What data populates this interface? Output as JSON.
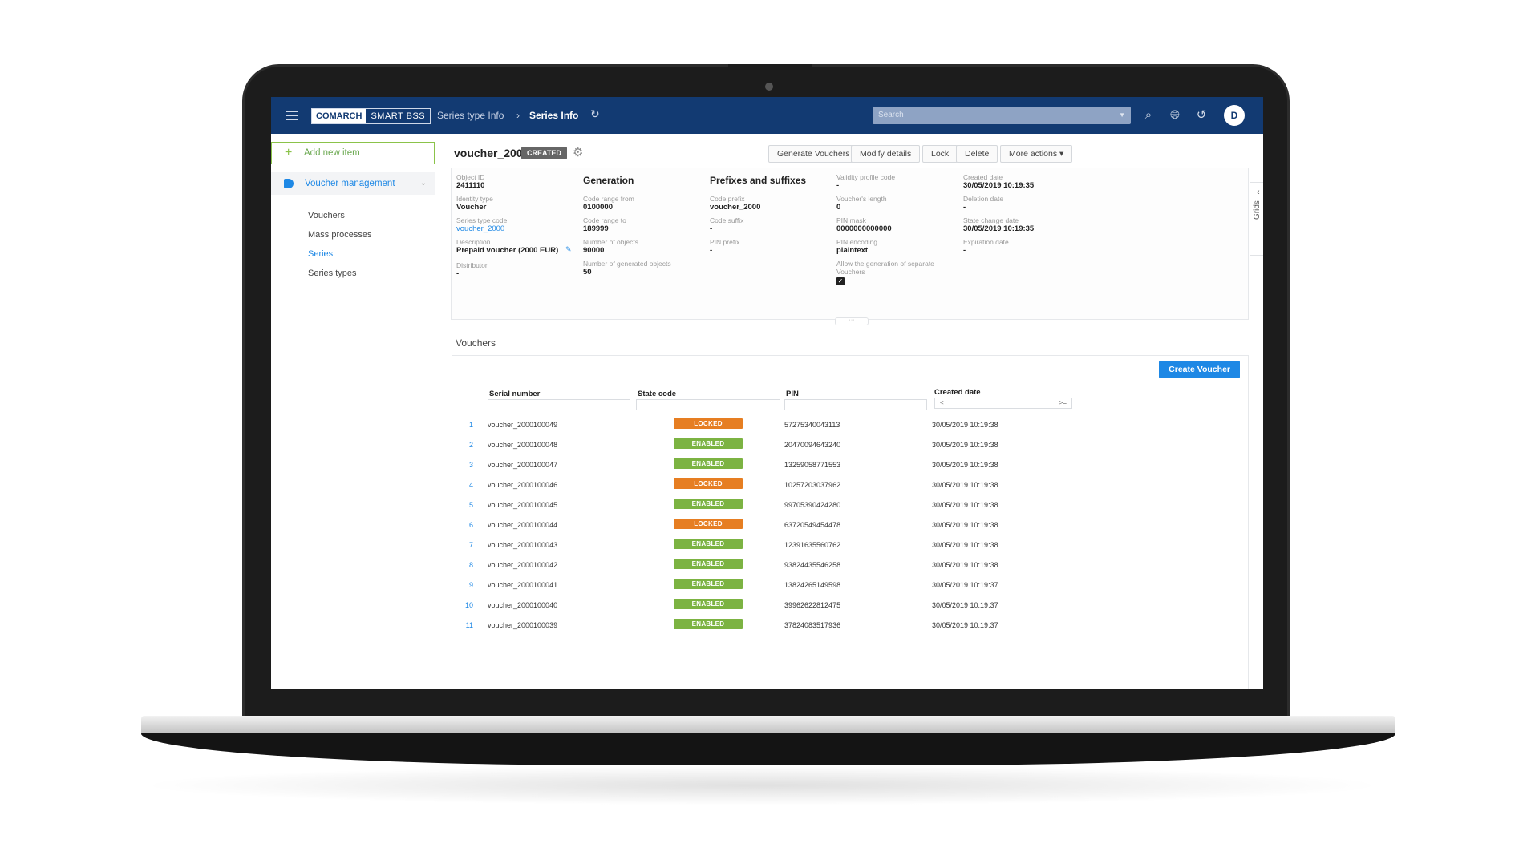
{
  "colors": {
    "topbar": "#123a72",
    "accent": "#1e88e5",
    "locked": "#e67e22",
    "enabled": "#7cb342",
    "add_green": "#8bc34a"
  },
  "header": {
    "logo_brand": "COMARCH",
    "logo_product": "SMART BSS",
    "breadcrumb_parent": "Series type Info",
    "breadcrumb_current": "Series Info",
    "search_placeholder": "Search",
    "avatar_initial": "D"
  },
  "sidebar": {
    "add_new": "Add new item",
    "section": "Voucher management",
    "items": [
      {
        "label": "Vouchers",
        "active": false
      },
      {
        "label": "Mass processes",
        "active": false
      },
      {
        "label": "Series",
        "active": true
      },
      {
        "label": "Series types",
        "active": false
      }
    ]
  },
  "page": {
    "title": "voucher_2000",
    "status": "CREATED",
    "actions": [
      "Generate Vouchers",
      "Modify details",
      "Lock",
      "Delete",
      "More actions ▾"
    ]
  },
  "details": {
    "col1": {
      "object_id_label": "Object ID",
      "object_id": "2411110",
      "identity_type_label": "Identity type",
      "identity_type": "Voucher",
      "series_type_code_label": "Series type code",
      "series_type_code": "voucher_2000",
      "description_label": "Description",
      "description": "Prepaid voucher (2000 EUR)",
      "distributor_label": "Distributor",
      "distributor": "-"
    },
    "col2": {
      "heading": "Generation",
      "code_range_from_label": "Code range from",
      "code_range_from": "0100000",
      "code_range_to_label": "Code range to",
      "code_range_to": "189999",
      "number_of_objects_label": "Number of objects",
      "number_of_objects": "90000",
      "generated_label": "Number of generated objects",
      "generated": "50"
    },
    "col3": {
      "heading": "Prefixes and suffixes",
      "code_prefix_label": "Code prefix",
      "code_prefix": "voucher_2000",
      "code_suffix_label": "Code suffix",
      "code_suffix": "-",
      "pin_prefix_label": "PIN prefix",
      "pin_prefix": "-"
    },
    "col4": {
      "validity_label": "Validity profile code",
      "validity": "-",
      "length_label": "Voucher's length",
      "length": "0",
      "pin_mask_label": "PIN mask",
      "pin_mask": "0000000000000",
      "pin_encoding_label": "PIN encoding",
      "pin_encoding": "plaintext",
      "allow_sep_label_1": "Allow the generation of separate",
      "allow_sep_label_2": "Vouchers"
    },
    "col5": {
      "created_label": "Created date",
      "created": "30/05/2019 10:19:35",
      "deletion_label": "Deletion date",
      "deletion": "-",
      "state_change_label": "State change date",
      "state_change": "30/05/2019 10:19:35",
      "expiration_label": "Expiration date",
      "expiration": "-"
    }
  },
  "grids_tab": "Grids",
  "vouchers": {
    "heading": "Vouchers",
    "create_button": "Create Voucher",
    "columns": [
      "Serial number",
      "State code",
      "PIN",
      "Created date"
    ],
    "date_filter_from": "<",
    "date_filter_to": ">=",
    "rows": [
      {
        "n": "1",
        "serial": "voucher_2000100049",
        "state": "LOCKED",
        "pin": "57275340043113",
        "date": "30/05/2019 10:19:38"
      },
      {
        "n": "2",
        "serial": "voucher_2000100048",
        "state": "ENABLED",
        "pin": "20470094643240",
        "date": "30/05/2019 10:19:38"
      },
      {
        "n": "3",
        "serial": "voucher_2000100047",
        "state": "ENABLED",
        "pin": "13259058771553",
        "date": "30/05/2019 10:19:38"
      },
      {
        "n": "4",
        "serial": "voucher_2000100046",
        "state": "LOCKED",
        "pin": "10257203037962",
        "date": "30/05/2019 10:19:38"
      },
      {
        "n": "5",
        "serial": "voucher_2000100045",
        "state": "ENABLED",
        "pin": "99705390424280",
        "date": "30/05/2019 10:19:38"
      },
      {
        "n": "6",
        "serial": "voucher_2000100044",
        "state": "LOCKED",
        "pin": "63720549454478",
        "date": "30/05/2019 10:19:38"
      },
      {
        "n": "7",
        "serial": "voucher_2000100043",
        "state": "ENABLED",
        "pin": "12391635560762",
        "date": "30/05/2019 10:19:38"
      },
      {
        "n": "8",
        "serial": "voucher_2000100042",
        "state": "ENABLED",
        "pin": "93824435546258",
        "date": "30/05/2019 10:19:38"
      },
      {
        "n": "9",
        "serial": "voucher_2000100041",
        "state": "ENABLED",
        "pin": "13824265149598",
        "date": "30/05/2019 10:19:37"
      },
      {
        "n": "10",
        "serial": "voucher_2000100040",
        "state": "ENABLED",
        "pin": "39962622812475",
        "date": "30/05/2019 10:19:37"
      },
      {
        "n": "11",
        "serial": "voucher_2000100039",
        "state": "ENABLED",
        "pin": "37824083517936",
        "date": "30/05/2019 10:19:37"
      }
    ]
  }
}
